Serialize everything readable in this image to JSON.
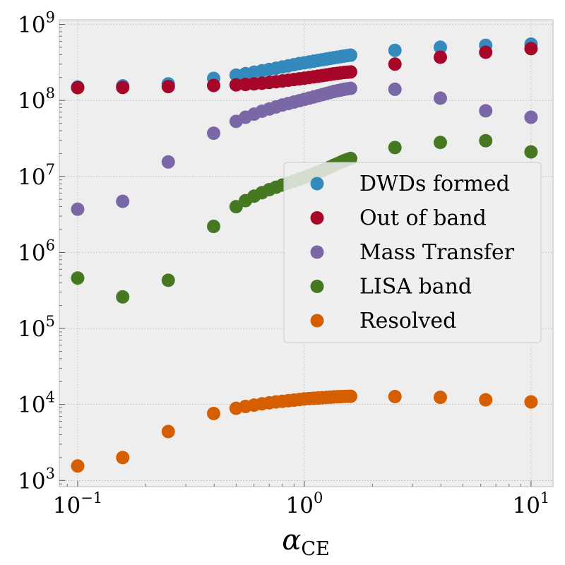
{
  "chart_data": {
    "type": "scatter",
    "title": "",
    "xscale": "log",
    "yscale": "log",
    "xlim": [
      0.083,
      12.5
    ],
    "ylim": [
      830,
      1150000000
    ],
    "xlabel": {
      "symbol": "α",
      "sub": "CE"
    },
    "ylabel": "",
    "xticks": [
      {
        "value": 0.1,
        "base": "10",
        "exp": "−1"
      },
      {
        "value": 1,
        "base": "10",
        "exp": "0"
      },
      {
        "value": 10,
        "base": "10",
        "exp": "1"
      }
    ],
    "yticks": [
      {
        "value": 1000,
        "base": "10",
        "exp": "3"
      },
      {
        "value": 10000,
        "base": "10",
        "exp": "4"
      },
      {
        "value": 100000,
        "base": "10",
        "exp": "5"
      },
      {
        "value": 1000000,
        "base": "10",
        "exp": "6"
      },
      {
        "value": 10000000,
        "base": "10",
        "exp": "7"
      },
      {
        "value": 100000000,
        "base": "10",
        "exp": "8"
      },
      {
        "value": 1000000000,
        "base": "10",
        "exp": "9"
      }
    ],
    "grid": true,
    "legend_position": "center-right",
    "x": [
      0.1,
      0.158,
      0.251,
      0.398,
      0.5,
      0.55,
      0.6,
      0.65,
      0.7,
      0.75,
      0.8,
      0.85,
      0.9,
      0.95,
      1.0,
      1.05,
      1.1,
      1.15,
      1.2,
      1.25,
      1.3,
      1.35,
      1.4,
      1.45,
      1.5,
      1.55,
      1.6,
      2.51,
      3.98,
      6.31,
      10.0
    ],
    "series": [
      {
        "name": "DWDs formed",
        "color": "#348ABD",
        "values": [
          150000000,
          155000000,
          165000000,
          195000000,
          215000000,
          225000000,
          235000000,
          245000000,
          255000000,
          265000000,
          275000000,
          285000000,
          295000000,
          305000000,
          312000000,
          320000000,
          328000000,
          335000000,
          342000000,
          350000000,
          357000000,
          364000000,
          370000000,
          377000000,
          383000000,
          388000000,
          393000000,
          455000000,
          500000000,
          530000000,
          550000000
        ]
      },
      {
        "name": "Out of band",
        "color": "#A60628",
        "values": [
          147000000,
          148000000,
          152000000,
          157000000,
          160000000,
          162000000,
          165000000,
          168000000,
          172000000,
          176000000,
          180000000,
          184000000,
          188000000,
          192000000,
          196000000,
          200000000,
          204000000,
          208000000,
          212000000,
          216000000,
          220000000,
          224000000,
          227000000,
          230000000,
          233000000,
          235000000,
          237000000,
          300000000,
          370000000,
          430000000,
          480000000
        ]
      },
      {
        "name": "Mass Transfer",
        "color": "#7A68A6",
        "values": [
          3700000,
          4700000,
          15500000,
          37000000,
          53000000,
          60000000,
          66000000,
          72000000,
          77000000,
          82000000,
          87000000,
          91000000,
          95000000,
          99000000,
          103000000,
          107000000,
          111000000,
          115000000,
          119000000,
          123000000,
          127000000,
          131000000,
          134000000,
          137000000,
          140000000,
          142000000,
          144000000,
          140000000,
          107000000,
          73000000,
          60000000
        ]
      },
      {
        "name": "LISA band",
        "color": "#467821",
        "values": [
          460000,
          260000,
          430000,
          2200000,
          4000000,
          4800000,
          5500000,
          6100000,
          6700000,
          7200000,
          7700000,
          8200000,
          8700000,
          9200000,
          9700000,
          10200000,
          10800000,
          11400000,
          12000000,
          12600000,
          13300000,
          14000000,
          14700000,
          15400000,
          16100000,
          16700000,
          17200000,
          24000000,
          28000000,
          29500000,
          21000000
        ]
      },
      {
        "name": "Resolved",
        "color": "#D55E00",
        "values": [
          1550,
          2000,
          4400,
          7600,
          8900,
          9400,
          9800,
          10200,
          10500,
          10800,
          11000,
          11200,
          11400,
          11600,
          11800,
          11950,
          12050,
          12150,
          12250,
          12350,
          12450,
          12550,
          12620,
          12680,
          12730,
          12770,
          12800,
          12700,
          12400,
          11500,
          10800
        ]
      }
    ]
  }
}
